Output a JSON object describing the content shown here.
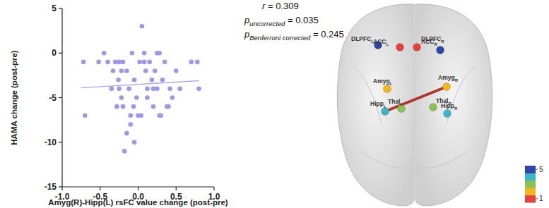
{
  "chart_data": {
    "type": "scatter",
    "x_label": "Amyg(R)-Hipp(L) rsFC value change (post-pre)",
    "y_label": "HAMA change (post-pre)",
    "x": [
      -0.72,
      -0.7,
      -0.52,
      -0.45,
      -0.4,
      -0.35,
      -0.33,
      -0.3,
      -0.28,
      -0.26,
      -0.25,
      -0.25,
      -0.22,
      -0.22,
      -0.2,
      -0.2,
      -0.18,
      -0.15,
      -0.15,
      -0.12,
      -0.1,
      -0.1,
      -0.08,
      -0.06,
      -0.05,
      -0.05,
      -0.02,
      0.0,
      0.02,
      0.04,
      0.05,
      0.08,
      0.08,
      0.1,
      0.12,
      0.12,
      0.15,
      0.18,
      0.2,
      0.2,
      0.22,
      0.25,
      0.25,
      0.28,
      0.28,
      0.3,
      0.32,
      0.35,
      0.38,
      0.4,
      0.42,
      0.45,
      0.5,
      0.55,
      0.7,
      0.78,
      0.8
    ],
    "values": [
      -1,
      -7,
      -1,
      0,
      -1,
      -4,
      -2,
      -1,
      -6,
      -3,
      -1,
      -4,
      -2,
      -5,
      -6,
      -1,
      -11,
      -9,
      -2,
      -4,
      -7,
      -8,
      0,
      -6,
      -10,
      -3,
      -5,
      -7,
      -1,
      -7,
      3,
      0,
      -1,
      -2,
      -4,
      -5,
      -1,
      -3,
      -6,
      -4,
      -2,
      -4,
      0,
      0,
      -7,
      -7,
      -3,
      -1,
      -6,
      -6,
      -4,
      -5,
      -2,
      -4,
      -1,
      -1,
      -4
    ],
    "color": "#9a9ae6",
    "marker": "circle",
    "xlim": [
      -1,
      1
    ],
    "xticks": [
      {
        "value": -1,
        "label": "-1.0"
      },
      {
        "value": -0.5,
        "label": "-0.5"
      },
      {
        "value": 0,
        "label": "0.0"
      },
      {
        "value": 0.5,
        "label": "0.5"
      },
      {
        "value": 1,
        "label": "1.0"
      }
    ],
    "ylim": [
      -15,
      5
    ],
    "yticks": [
      -15,
      -10,
      -5,
      0,
      5
    ],
    "trend_line": {
      "x": [
        -0.75,
        0.8
      ],
      "y": [
        -3.9,
        -3.1
      ],
      "color": "#a8a8e8"
    },
    "annotations": [
      {
        "symbol": "r",
        "suffix": " = 0.309"
      },
      {
        "symbol": "p",
        "subscript": "uncorrected",
        "suffix": " = 0.035"
      },
      {
        "symbol": "p",
        "subscript": "Benferroni corrected",
        "suffix": " = 0.245"
      }
    ]
  },
  "diagram": {
    "nodes": [
      {
        "label": "DLPFC",
        "subscript": "L",
        "module": 5
      },
      {
        "label": "ACC",
        "subscript": "L",
        "module": 1
      },
      {
        "label": "ACC",
        "subscript": "R",
        "module": 1
      },
      {
        "label": "DLPFC",
        "subscript": "R",
        "module": 5
      },
      {
        "label": "Amyg",
        "subscript": "L",
        "module": 2
      },
      {
        "label": "Amyg",
        "subscript": "R",
        "module": 2
      },
      {
        "label": "Thal",
        "subscript": "L",
        "module": 3
      },
      {
        "label": "Thal",
        "subscript": "R",
        "module": 3
      },
      {
        "label": "Hipp",
        "subscript": "L",
        "module": 4
      },
      {
        "label": "Hipp",
        "subscript": "R",
        "module": 4
      }
    ],
    "edges": [
      {
        "source": 5,
        "target": 8,
        "color": "#b0362c"
      }
    ],
    "module_colors": [
      "#e8413c",
      "#f2b61f",
      "#8cc152",
      "#3cb6c6",
      "#2b46a6"
    ],
    "colorbar": {
      "range": [
        1,
        5
      ],
      "ticks": [
        1,
        5
      ]
    }
  }
}
